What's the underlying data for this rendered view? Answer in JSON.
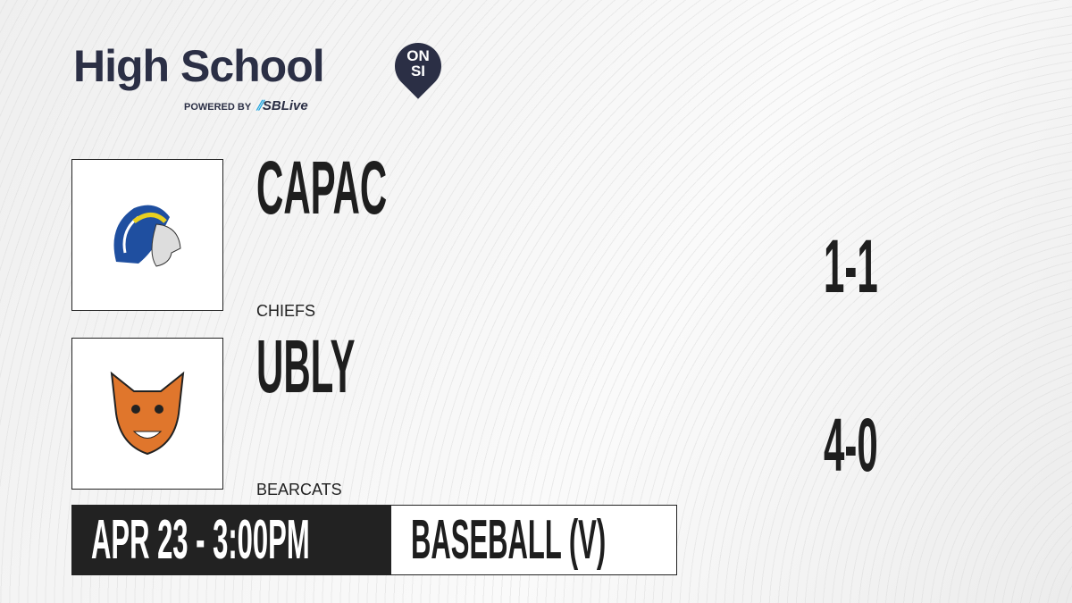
{
  "brand": {
    "title": "High School",
    "badge_top": "ON",
    "badge_bottom": "SI",
    "powered_by": "POWERED BY",
    "partner": "SBLive"
  },
  "teams": [
    {
      "name": "CAPAC",
      "mascot": "CHIEFS",
      "record": "1-1",
      "logo_icon": "chief-headdress-logo",
      "color": "#1f4fa0"
    },
    {
      "name": "UBLY",
      "mascot": "BEARCATS",
      "record": "4-0",
      "logo_icon": "bearcat-logo",
      "color": "#e0762c"
    }
  ],
  "game": {
    "datetime": "APR 23 - 3:00PM",
    "sport": "BASEBALL (V)"
  }
}
